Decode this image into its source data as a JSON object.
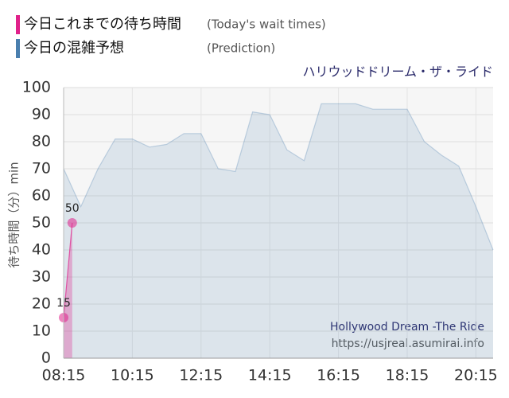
{
  "chart_data": {
    "type": "area",
    "title": "ハリウッドドリーム・ザ・ライド",
    "y_label": "待ち時間（分）min",
    "watermark": [
      "Hollywood Dream -The Ride",
      "https://usjreal.asumirai.info"
    ],
    "xlim": [
      "08:15",
      "20:45"
    ],
    "xticks": [
      "08:15",
      "10:15",
      "12:15",
      "14:15",
      "16:15",
      "18:15",
      "20:15"
    ],
    "ylim": [
      0,
      100
    ],
    "yticks": [
      0,
      10,
      20,
      30,
      40,
      50,
      60,
      70,
      80,
      90,
      100
    ],
    "grid": true,
    "series": [
      {
        "name": "今日これまでの待ち時間",
        "name_en": "(Today's wait times)",
        "color": "#e0218a",
        "markers": true,
        "data_labels": true,
        "x": [
          "08:15",
          "08:30"
        ],
        "values": [
          15,
          50
        ]
      },
      {
        "name": "今日の混雑予想",
        "name_en": "(Prediction)",
        "color": "#4a7fae",
        "markers": false,
        "data_labels": false,
        "x": [
          "08:15",
          "08:45",
          "09:15",
          "09:45",
          "10:15",
          "10:45",
          "11:15",
          "11:45",
          "12:15",
          "12:45",
          "13:15",
          "13:45",
          "14:15",
          "14:45",
          "15:15",
          "15:45",
          "16:15",
          "16:45",
          "17:15",
          "17:45",
          "18:15",
          "18:45",
          "19:15",
          "19:45",
          "20:15",
          "20:45"
        ],
        "values": [
          70,
          56,
          70,
          81,
          81,
          78,
          79,
          83,
          83,
          70,
          69,
          91,
          90,
          77,
          73,
          94,
          94,
          94,
          92,
          92,
          92,
          80,
          75,
          71,
          56,
          40
        ]
      }
    ]
  }
}
